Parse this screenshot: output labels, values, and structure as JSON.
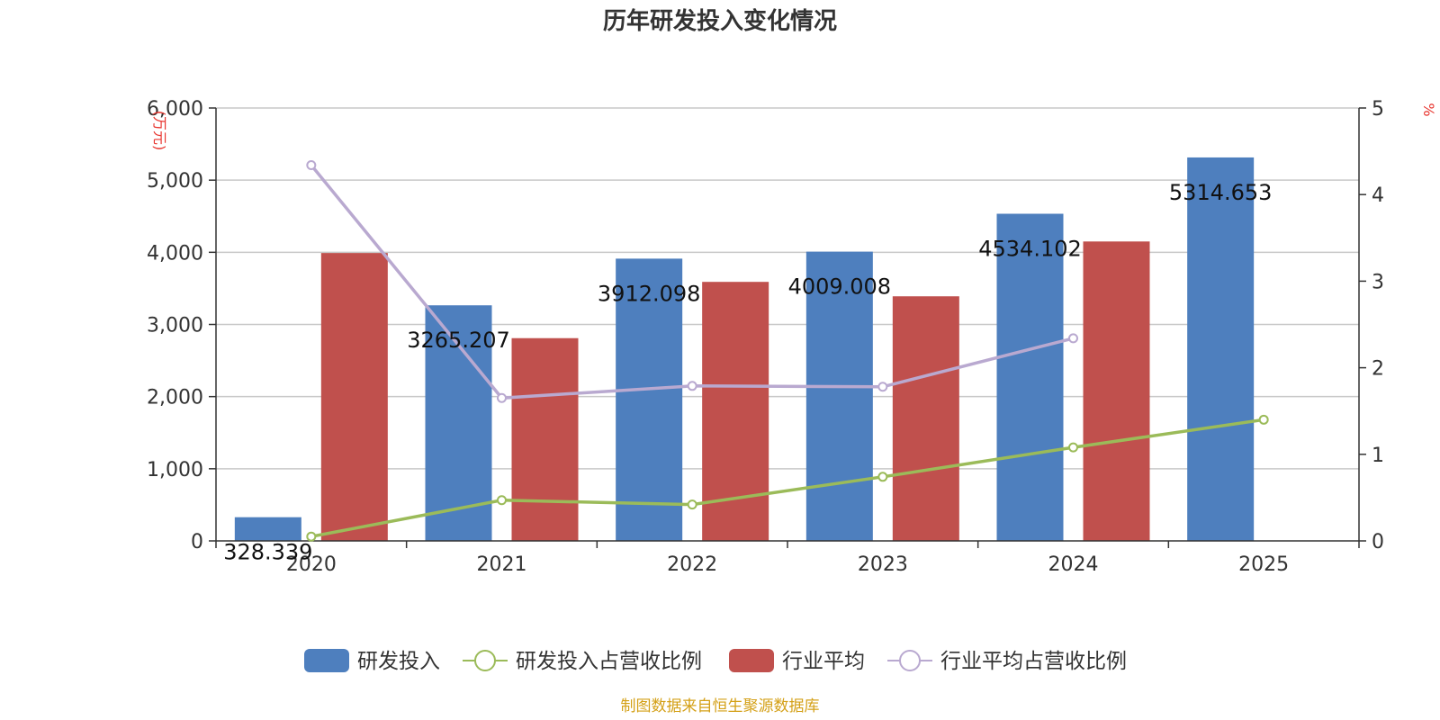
{
  "chart_data": {
    "type": "bar",
    "title": "历年研发投入变化情况",
    "categories": [
      "2020",
      "2021",
      "2022",
      "2023",
      "2024",
      "2025"
    ],
    "y_left": {
      "label": "(万元)",
      "min": 0,
      "max": 6000,
      "ticks": [
        "0",
        "1,000",
        "2,000",
        "3,000",
        "4,000",
        "5,000",
        "6,000"
      ]
    },
    "y_right": {
      "label": "%",
      "min": 0,
      "max": 5,
      "ticks": [
        "0",
        "1",
        "2",
        "3",
        "4",
        "5"
      ]
    },
    "series": [
      {
        "name": "研发投入",
        "kind": "bar",
        "axis": "left",
        "color": "#4e7fbe",
        "values": [
          328.339,
          3265.207,
          3912.098,
          4009.008,
          4534.102,
          5314.653
        ],
        "labels": [
          "328.339",
          "3265.207",
          "3912.098",
          "4009.008",
          "4534.102",
          "5314.653"
        ]
      },
      {
        "name": "研发投入占营收比例",
        "kind": "line",
        "axis": "right",
        "color": "#9bbb59",
        "values": [
          0.05,
          0.47,
          0.42,
          0.74,
          1.08,
          1.4
        ]
      },
      {
        "name": "行业平均",
        "kind": "bar",
        "axis": "left",
        "color": "#c0504d",
        "values": [
          3990,
          2810,
          3590,
          3390,
          4150,
          null
        ]
      },
      {
        "name": "行业平均占营收比例",
        "kind": "line",
        "axis": "right",
        "color": "#b9a9d0",
        "values": [
          4.34,
          1.65,
          1.79,
          1.78,
          2.34,
          null
        ]
      }
    ],
    "grid": true,
    "legend_position": "bottom"
  },
  "source": "制图数据来自恒生聚源数据库",
  "colors": {
    "title": "#333333",
    "axis_unit": "#e8352f",
    "source": "#d4a017",
    "gridline": "#c8c8c8",
    "axis": "#333333"
  }
}
